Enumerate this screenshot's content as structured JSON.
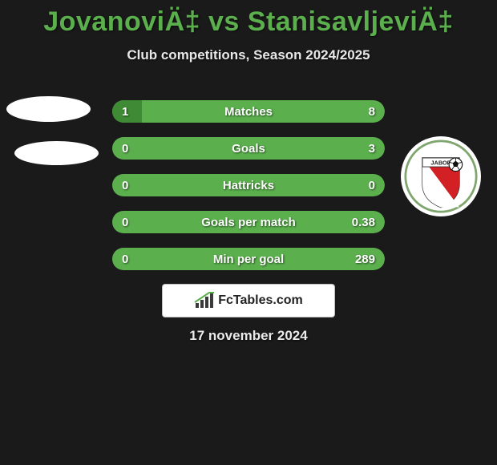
{
  "background_color": "#1a1a1a",
  "title": {
    "text": "JovanoviÄ‡ vs StanisavljeviÄ‡",
    "color": "#5bb04d",
    "fontsize": 34
  },
  "subtitle": {
    "text": "Club competitions, Season 2024/2025",
    "color": "#e8e8e8",
    "fontsize": 17
  },
  "bar_color": "#5bb04d",
  "label_color": "#ffffff",
  "rows": [
    {
      "label": "Matches",
      "left": "1",
      "right": "8",
      "left_pct": 11,
      "right_pct": 89
    },
    {
      "label": "Goals",
      "left": "0",
      "right": "3",
      "left_pct": 0,
      "right_pct": 100
    },
    {
      "label": "Hattricks",
      "left": "0",
      "right": "0",
      "left_pct": 0,
      "right_pct": 0,
      "neutral": true
    },
    {
      "label": "Goals per match",
      "left": "0",
      "right": "0.38",
      "left_pct": 0,
      "right_pct": 100
    },
    {
      "label": "Min per goal",
      "left": "0",
      "right": "289",
      "left_pct": 0,
      "right_pct": 100
    }
  ],
  "brand": {
    "text": "FcTables.com"
  },
  "date": {
    "text": "17 november 2024"
  },
  "crest": {
    "colors": {
      "bg": "#ffffff",
      "red": "#d22025",
      "white": "#ffffff",
      "outline": "#1f3a1f"
    },
    "label_text": "ЈАВОР"
  }
}
